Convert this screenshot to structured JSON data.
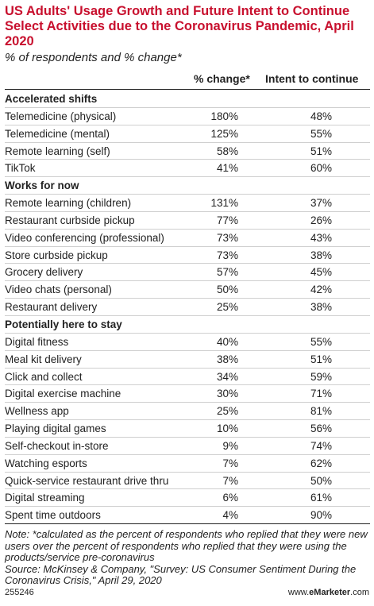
{
  "chart_data": {
    "type": "table",
    "title": "US Adults' Usage Growth and Future Intent to Continue Select Activities due to the Coronavirus Pandemic, April 2020",
    "subtitle": "% of respondents and % change*",
    "columns": [
      "% change*",
      "Intent to continue"
    ],
    "sections": [
      {
        "name": "Accelerated shifts",
        "rows": [
          {
            "label": "Telemedicine (physical)",
            "change": "180%",
            "intent": "48%"
          },
          {
            "label": "Telemedicine (mental)",
            "change": "125%",
            "intent": "55%"
          },
          {
            "label": "Remote learning (self)",
            "change": "58%",
            "intent": "51%"
          },
          {
            "label": "TikTok",
            "change": "41%",
            "intent": "60%"
          }
        ]
      },
      {
        "name": "Works for now",
        "rows": [
          {
            "label": "Remote learning (children)",
            "change": "131%",
            "intent": "37%"
          },
          {
            "label": "Restaurant curbside pickup",
            "change": "77%",
            "intent": "26%"
          },
          {
            "label": "Video conferencing (professional)",
            "change": "73%",
            "intent": "43%"
          },
          {
            "label": "Store curbside pickup",
            "change": "73%",
            "intent": "38%"
          },
          {
            "label": "Grocery delivery",
            "change": "57%",
            "intent": "45%"
          },
          {
            "label": "Video chats (personal)",
            "change": "50%",
            "intent": "42%"
          },
          {
            "label": "Restaurant delivery",
            "change": "25%",
            "intent": "38%"
          }
        ]
      },
      {
        "name": "Potentially here to stay",
        "rows": [
          {
            "label": "Digital fitness",
            "change": "40%",
            "intent": "55%"
          },
          {
            "label": "Meal kit delivery",
            "change": "38%",
            "intent": "51%"
          },
          {
            "label": "Click and collect",
            "change": "34%",
            "intent": "59%"
          },
          {
            "label": "Digital exercise machine",
            "change": "30%",
            "intent": "71%"
          },
          {
            "label": "Wellness app",
            "change": "25%",
            "intent": "81%"
          },
          {
            "label": "Playing digital games",
            "change": "10%",
            "intent": "56%"
          },
          {
            "label": "Self-checkout in-store",
            "change": "9%",
            "intent": "74%"
          },
          {
            "label": "Watching esports",
            "change": "7%",
            "intent": "62%"
          },
          {
            "label": "Quick-service restaurant drive thru",
            "change": "7%",
            "intent": "50%"
          },
          {
            "label": "Digital streaming",
            "change": "6%",
            "intent": "61%"
          },
          {
            "label": "Spent time outdoors",
            "change": "4%",
            "intent": "90%"
          }
        ]
      }
    ]
  },
  "note": "Note: *calculated as the percent of respondents who replied that they were new users over the percent of respondents who replied that they were using the products/service pre-coronavirus",
  "source": "Source: McKinsey & Company, \"Survey: US Consumer Sentiment During the Coronavirus Crisis,\" April 29, 2020",
  "footer": {
    "id": "255246",
    "brand_prefix": "www.",
    "brand_name": "eMarketer",
    "brand_suffix": ".com"
  },
  "colors": {
    "title": "#c8102e"
  }
}
